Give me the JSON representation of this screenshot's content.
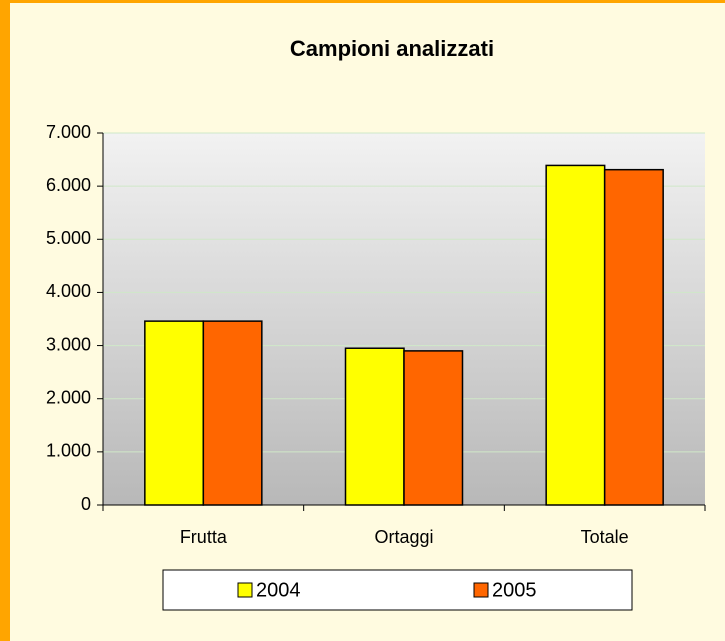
{
  "chart_data": {
    "type": "bar",
    "title": "Campioni analizzati",
    "categories": [
      "Frutta",
      "Ortaggi",
      "Totale"
    ],
    "series": [
      {
        "name": "2004",
        "color": "#ffff00",
        "values": [
          3460,
          2950,
          6390
        ]
      },
      {
        "name": "2005",
        "color": "#ff6600",
        "values": [
          3460,
          2900,
          6310
        ]
      }
    ],
    "ylim": [
      0,
      7000
    ],
    "yticks": [
      0,
      {
        "value": 1000,
        "label": "1.000"
      },
      {
        "value": 2000,
        "label": "2.000"
      },
      {
        "value": 3000,
        "label": "3.000"
      },
      {
        "value": 4000,
        "label": "4.000"
      },
      {
        "value": 5000,
        "label": "5.000"
      },
      {
        "value": 6000,
        "label": "6.000"
      },
      {
        "value": 7000,
        "label": "7.000"
      }
    ],
    "grid": true,
    "legend": "bottom"
  }
}
